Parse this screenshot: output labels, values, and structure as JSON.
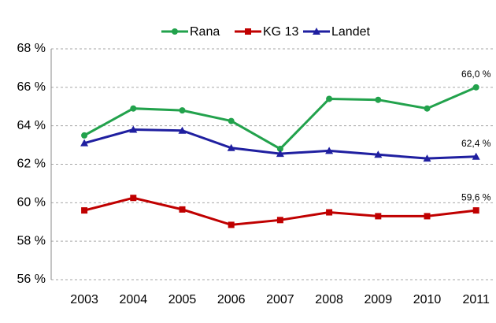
{
  "chart_data": {
    "type": "line",
    "categories": [
      "2003",
      "2004",
      "2005",
      "2006",
      "2007",
      "2008",
      "2009",
      "2010",
      "2011"
    ],
    "series": [
      {
        "name": "Rana",
        "color": "#22a24c",
        "marker": "circle",
        "values": [
          63.5,
          64.9,
          64.8,
          64.25,
          62.8,
          65.4,
          65.35,
          64.9,
          66.0
        ],
        "value_labels": [
          null,
          null,
          null,
          null,
          null,
          null,
          null,
          null,
          "66,0 %"
        ]
      },
      {
        "name": "KG 13",
        "color": "#c00000",
        "marker": "square",
        "values": [
          59.6,
          60.25,
          59.65,
          58.85,
          59.1,
          59.5,
          59.3,
          59.3,
          59.6
        ],
        "value_labels": [
          null,
          null,
          null,
          null,
          null,
          null,
          null,
          null,
          "59,6 %"
        ]
      },
      {
        "name": "Landet",
        "color": "#1f1fa0",
        "marker": "triangle",
        "values": [
          63.1,
          63.8,
          63.75,
          62.85,
          62.55,
          62.7,
          62.5,
          62.3,
          62.4
        ],
        "value_labels": [
          null,
          null,
          null,
          null,
          null,
          null,
          null,
          null,
          "62,4 %"
        ]
      }
    ],
    "ylim": [
      56,
      68
    ],
    "yticks": [
      {
        "value": 56,
        "label": "56 %"
      },
      {
        "value": 58,
        "label": "58 %"
      },
      {
        "value": 60,
        "label": "60 %"
      },
      {
        "value": 62,
        "label": "62 %"
      },
      {
        "value": 64,
        "label": "64 %"
      },
      {
        "value": 66,
        "label": "66 %"
      },
      {
        "value": 68,
        "label": "68 %"
      }
    ],
    "grid": true,
    "legend": "top"
  }
}
